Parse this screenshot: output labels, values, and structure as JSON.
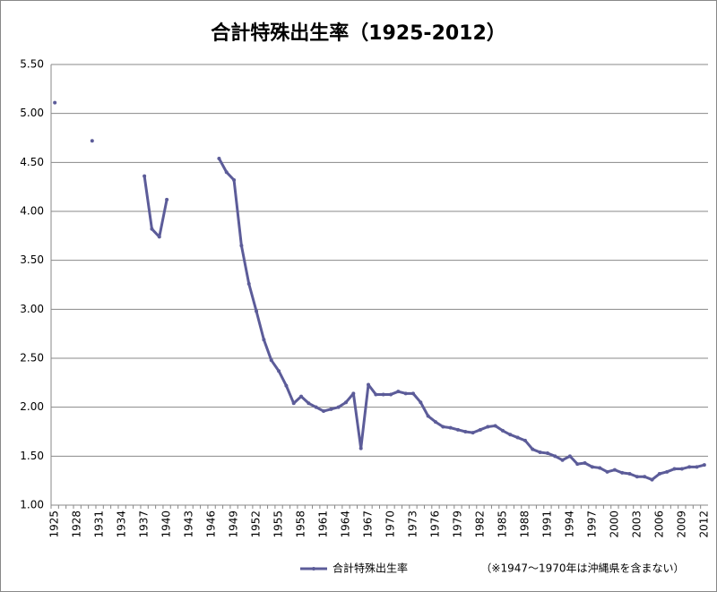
{
  "chart_data": {
    "type": "line",
    "title": "合計特殊出生率（1925-2012）",
    "annotation": "（※1947～1970年は沖縄県を含まない）",
    "categories": [
      "1925",
      null,
      null,
      "1928",
      null,
      null,
      "1931",
      null,
      null,
      "1934",
      null,
      null,
      "1937",
      null,
      null,
      "1940",
      null,
      null,
      "1943",
      null,
      null,
      "1946",
      null,
      null,
      "1949",
      null,
      null,
      "1952",
      null,
      null,
      "1955",
      null,
      null,
      "1958",
      null,
      null,
      "1961",
      null,
      null,
      "1964",
      null,
      null,
      "1967",
      null,
      null,
      "1970",
      null,
      null,
      "1973",
      null,
      null,
      "1976",
      null,
      null,
      "1979",
      null,
      null,
      "1982",
      null,
      null,
      "1985",
      null,
      null,
      "1988",
      null,
      null,
      "1991",
      null,
      null,
      "1994",
      null,
      null,
      "1997",
      null,
      null,
      "2000",
      null,
      null,
      "2003",
      null,
      null,
      "2006",
      null,
      null,
      "2009",
      null,
      null,
      "2012"
    ],
    "series": [
      {
        "name": "合計特殊出生率",
        "color": "#5c5c99",
        "values": [
          5.11,
          null,
          null,
          null,
          null,
          4.72,
          null,
          null,
          null,
          null,
          null,
          null,
          4.36,
          3.82,
          3.74,
          4.12,
          null,
          null,
          null,
          null,
          null,
          null,
          4.54,
          4.4,
          4.32,
          3.65,
          3.26,
          2.98,
          2.69,
          2.48,
          2.37,
          2.22,
          2.04,
          2.11,
          2.04,
          2.0,
          1.96,
          1.98,
          2.0,
          2.05,
          2.14,
          1.58,
          2.23,
          2.13,
          2.13,
          2.13,
          2.16,
          2.14,
          2.14,
          2.05,
          1.91,
          1.85,
          1.8,
          1.79,
          1.77,
          1.75,
          1.74,
          1.77,
          1.8,
          1.81,
          1.76,
          1.72,
          1.69,
          1.66,
          1.57,
          1.54,
          1.53,
          1.5,
          1.46,
          1.5,
          1.42,
          1.43,
          1.39,
          1.38,
          1.34,
          1.36,
          1.33,
          1.32,
          1.29,
          1.29,
          1.26,
          1.32,
          1.34,
          1.37,
          1.37,
          1.39,
          1.39,
          1.41
        ]
      }
    ],
    "ylim": [
      1.0,
      5.5
    ],
    "yticks": [
      {
        "value": 1.0,
        "label": "1.00"
      },
      {
        "value": 1.5,
        "label": "1.50"
      },
      {
        "value": 2.0,
        "label": "2.00"
      },
      {
        "value": 2.5,
        "label": "2.50"
      },
      {
        "value": 3.0,
        "label": "3.00"
      },
      {
        "value": 3.5,
        "label": "3.50"
      },
      {
        "value": 4.0,
        "label": "4.00"
      },
      {
        "value": 4.5,
        "label": "4.50"
      },
      {
        "value": 5.0,
        "label": "5.00"
      },
      {
        "value": 5.5,
        "label": "5.50"
      }
    ],
    "grid": true,
    "legend": "bottom"
  }
}
